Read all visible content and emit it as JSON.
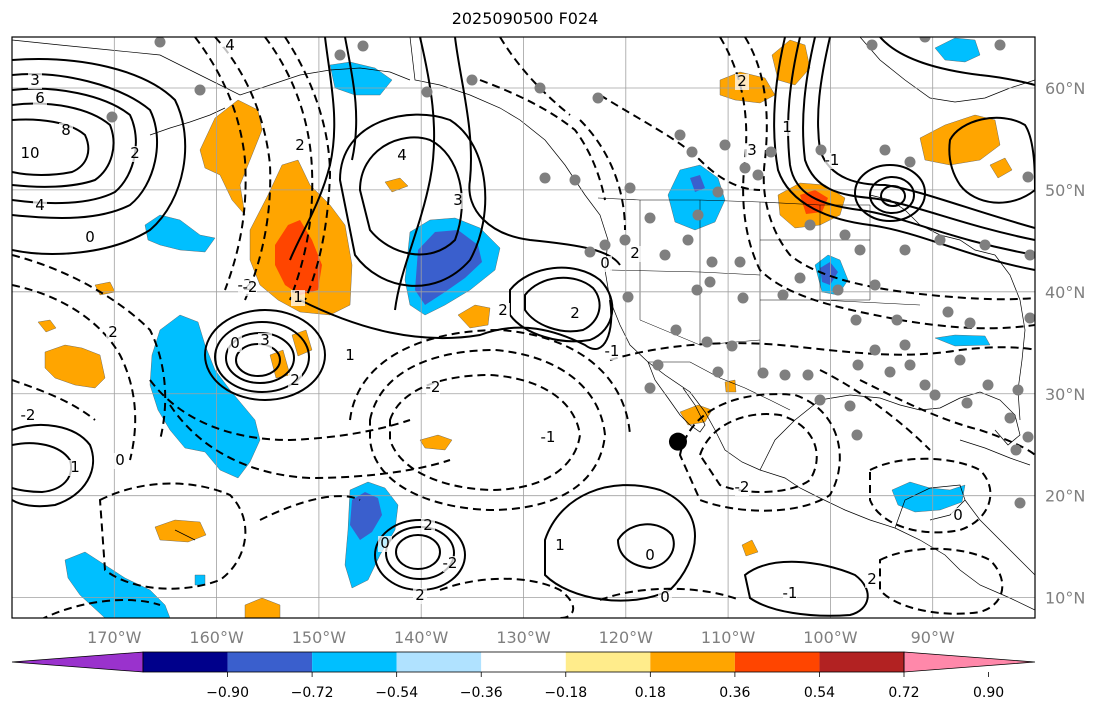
{
  "title": "2025090500 F024",
  "map": {
    "lon_range": [
      -180,
      -80
    ],
    "lat_range": [
      8,
      65
    ],
    "lat_ticks": [
      {
        "value": 10,
        "label": "10°N"
      },
      {
        "value": 20,
        "label": "20°N"
      },
      {
        "value": 30,
        "label": "30°N"
      },
      {
        "value": 40,
        "label": "40°N"
      },
      {
        "value": 50,
        "label": "50°N"
      },
      {
        "value": 60,
        "label": "60°N"
      }
    ],
    "lon_ticks": [
      {
        "value": -170,
        "label": "170°W"
      },
      {
        "value": -160,
        "label": "160°W"
      },
      {
        "value": -150,
        "label": "150°W"
      },
      {
        "value": -140,
        "label": "140°W"
      },
      {
        "value": -130,
        "label": "130°W"
      },
      {
        "value": -120,
        "label": "120°W"
      },
      {
        "value": -110,
        "label": "110°W"
      },
      {
        "value": -100,
        "label": "100°W"
      },
      {
        "value": -90,
        "label": "90°W"
      }
    ],
    "contour_labels": [
      "4",
      "3",
      "6",
      "8",
      "10",
      "4",
      "0",
      "2",
      "2",
      "-2",
      "1",
      "-2",
      "2",
      "3",
      "2",
      "0",
      "1",
      "-2",
      "-1",
      "0",
      "1",
      "-2",
      "2",
      "-2",
      "0",
      "4",
      "2",
      "3",
      "2",
      "2",
      "0",
      "2",
      "-1",
      "0",
      "1",
      "0",
      "-1",
      "2",
      "-2",
      "0",
      "1",
      "2",
      "3",
      "-1"
    ],
    "marker": {
      "lon": -114.9,
      "lat": 25.3,
      "color": "#000000"
    },
    "station_color": "#7f7f7f"
  },
  "colorbar": {
    "colors": [
      "#9a32cd",
      "#00008b",
      "#3a5fcd",
      "#00bfff",
      "#b0e2ff",
      "#ffffff",
      "#ffec8b",
      "#ffa500",
      "#ff4500",
      "#b22222",
      "#ff88aa"
    ],
    "tick_labels": [
      "−0.90",
      "−0.72",
      "−0.54",
      "−0.36",
      "−0.18",
      "0.18",
      "0.36",
      "0.54",
      "0.72",
      "0.90"
    ]
  },
  "shading": {
    "orange": "#ffa500",
    "red": "#ff4500",
    "light_blue": "#00bfff",
    "blue": "#3a5fcd"
  }
}
